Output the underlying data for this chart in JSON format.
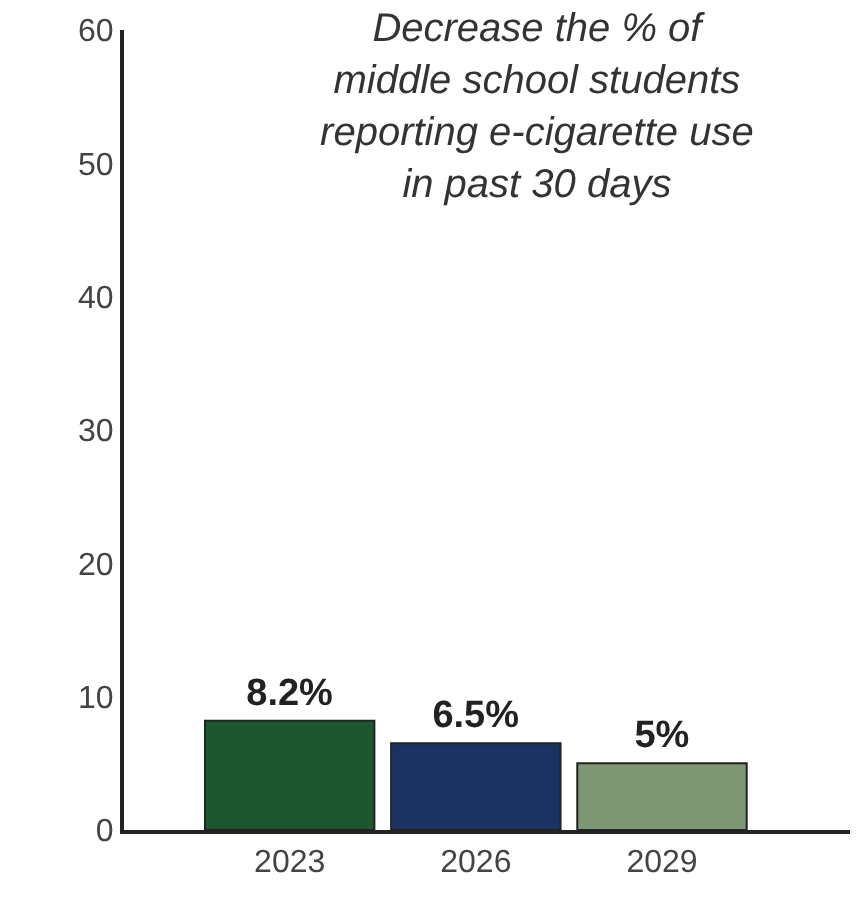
{
  "chart_data": {
    "type": "bar",
    "title": "Decrease the % of\nmiddle school students\nreporting e-cigarette use\nin past 30 days",
    "categories": [
      "2023",
      "2026",
      "2029"
    ],
    "values": [
      8.2,
      6.5,
      5
    ],
    "colors": [
      "#1d5630",
      "#1b3362",
      "#7e9774"
    ],
    "value_labels": [
      "8.2%",
      "6.5%",
      "5%"
    ],
    "ylim": [
      0,
      60
    ],
    "yticks": [
      0,
      10,
      20,
      30,
      40,
      50,
      60
    ]
  }
}
